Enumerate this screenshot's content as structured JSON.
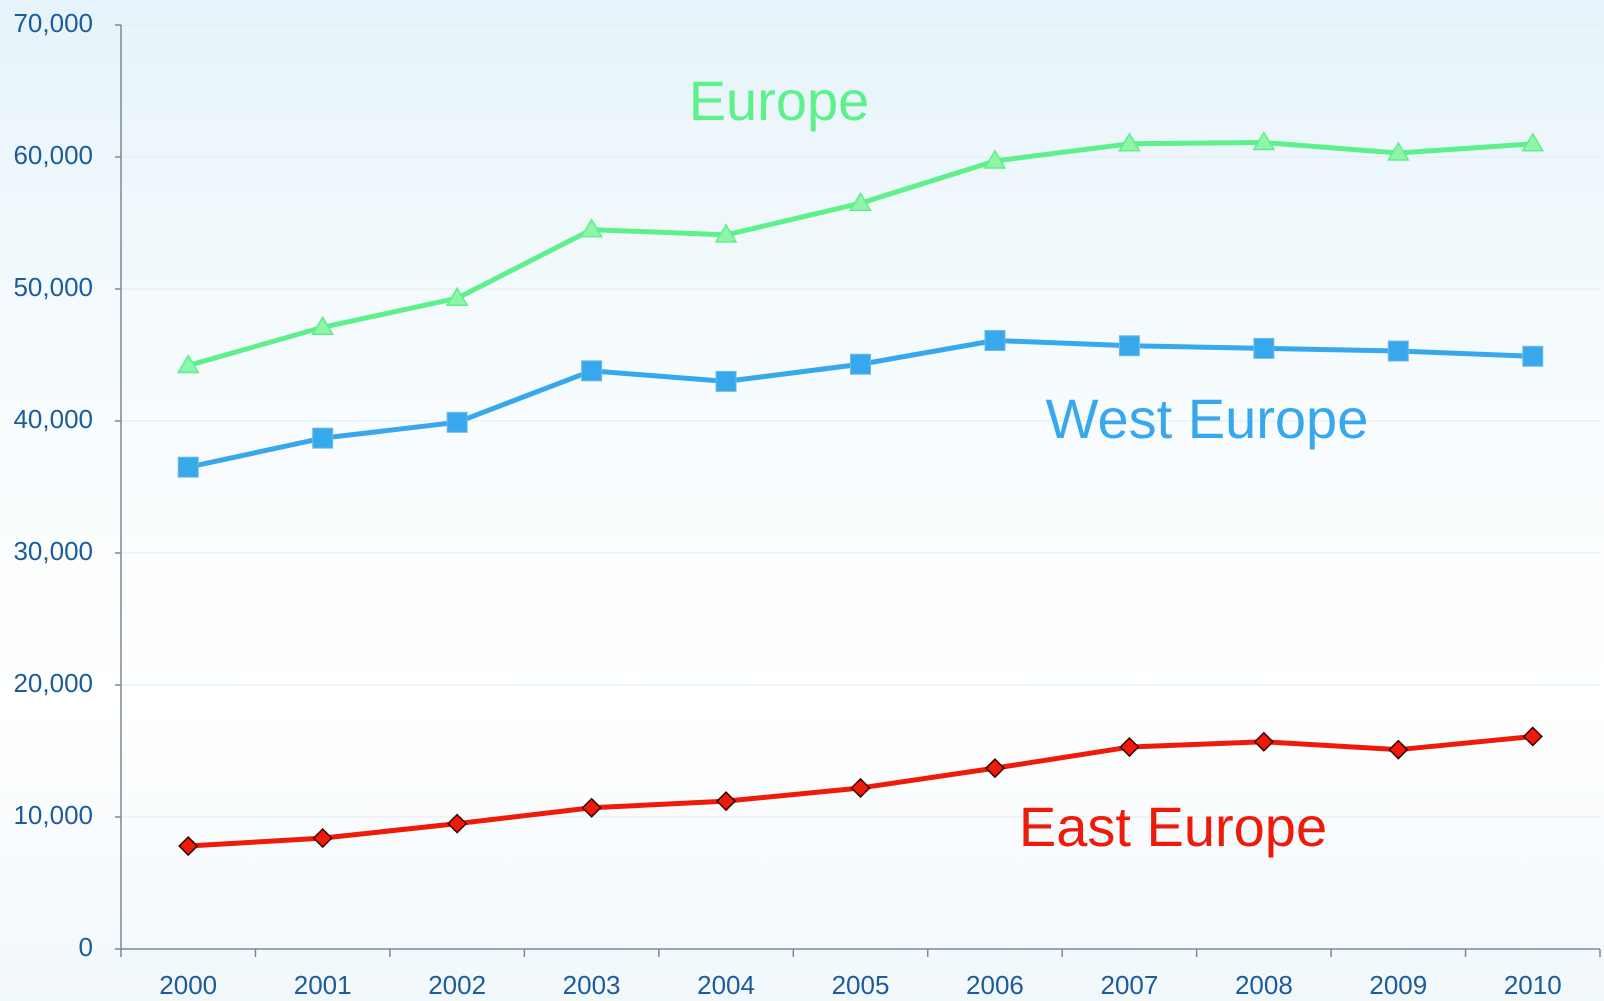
{
  "chart_data": {
    "type": "line",
    "categories": [
      "2000",
      "2001",
      "2002",
      "2003",
      "2004",
      "2005",
      "2006",
      "2007",
      "2008",
      "2009",
      "2010"
    ],
    "series": [
      {
        "name": "Europe",
        "color": "#5ef08a",
        "marker": "triangle",
        "values": [
          44200,
          47100,
          49300,
          54500,
          54100,
          56500,
          59700,
          61000,
          61100,
          60300,
          61000
        ]
      },
      {
        "name": "West Europe",
        "color": "#38a8ec",
        "marker": "square",
        "values": [
          36500,
          38700,
          39900,
          43800,
          43000,
          44300,
          46100,
          45700,
          45500,
          45300,
          44900
        ]
      },
      {
        "name": "East Europe",
        "color": "#ee1a0a",
        "marker": "diamond",
        "values": [
          7800,
          8400,
          9500,
          10700,
          11200,
          12200,
          13700,
          15300,
          15700,
          15100,
          16100
        ]
      }
    ],
    "ylim": [
      0,
      70000
    ],
    "yticks": [
      0,
      {
        "value": 10000,
        "label": "10,000"
      },
      {
        "value": 20000,
        "label": "20,000"
      },
      {
        "value": 30000,
        "label": "30,000"
      },
      {
        "value": 40000,
        "label": "40,000"
      },
      {
        "value": 50000,
        "label": "50,000"
      },
      {
        "value": 60000,
        "label": "60,000"
      },
      {
        "value": 70000,
        "label": "70,000"
      }
    ],
    "grid": true
  }
}
